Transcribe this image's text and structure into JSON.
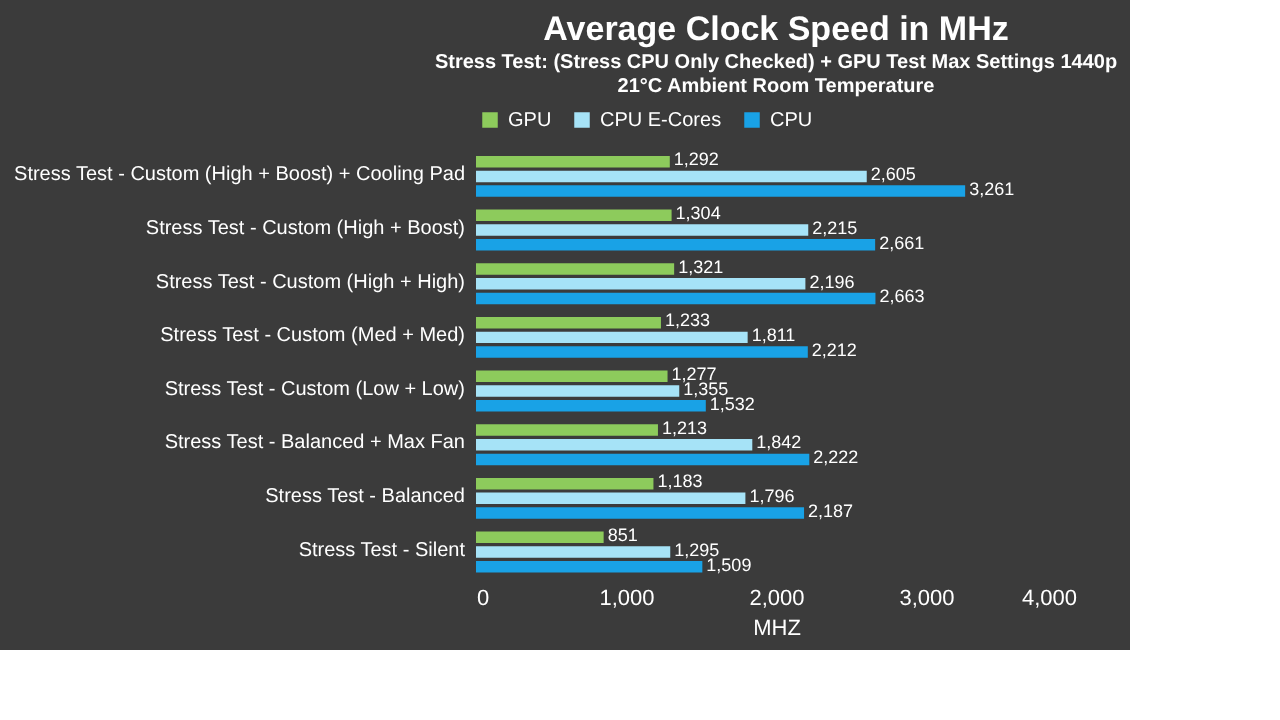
{
  "chart_data": {
    "type": "bar",
    "orientation": "horizontal",
    "title": "Average Clock Speed in MHz",
    "subtitle": "Stress Test: (Stress CPU Only Checked) + GPU Test Max Settings 1440p\n21°C Ambient Room Temperature",
    "xlabel": "MHZ",
    "categories": [
      "Stress Test - Custom (High + Boost) + Cooling Pad",
      "Stress Test - Custom (High + Boost)",
      "Stress Test - Custom (High + High)",
      "Stress Test - Custom (Med + Med)",
      "Stress Test - Custom (Low + Low)",
      "Stress Test - Balanced + Max Fan",
      "Stress Test - Balanced",
      "Stress Test - Silent"
    ],
    "series": [
      {
        "name": "GPU",
        "color": "#8dcb5c",
        "values": [
          1292,
          1304,
          1321,
          1233,
          1277,
          1213,
          1183,
          851
        ],
        "value_labels": [
          "1,292",
          "1,304",
          "1,321",
          "1,233",
          "1,277",
          "1,213",
          "1,183",
          "851"
        ]
      },
      {
        "name": "CPU E-Cores",
        "color": "#a6e3f7",
        "values": [
          2605,
          2215,
          2196,
          1811,
          1355,
          1842,
          1796,
          1295
        ],
        "value_labels": [
          "2,605",
          "2,215",
          "2,196",
          "1,811",
          "1,355",
          "1,842",
          "1,796",
          "1,295"
        ]
      },
      {
        "name": "CPU",
        "color": "#19a2e6",
        "values": [
          3261,
          2661,
          2663,
          2212,
          1532,
          2222,
          2187,
          1509
        ],
        "value_labels": [
          "3,261",
          "2,661",
          "2,663",
          "2,212",
          "1,532",
          "2,222",
          "2,187",
          "1,509"
        ]
      }
    ],
    "xlim": [
      0,
      4000
    ],
    "xticks": [
      0,
      {
        "value": 1000,
        "label": "1,000"
      },
      {
        "value": 2000,
        "label": "2,000"
      },
      {
        "value": 3000,
        "label": "3,000"
      },
      {
        "value": 4000,
        "label": "4,000"
      }
    ],
    "legend": "top",
    "grid": false
  }
}
